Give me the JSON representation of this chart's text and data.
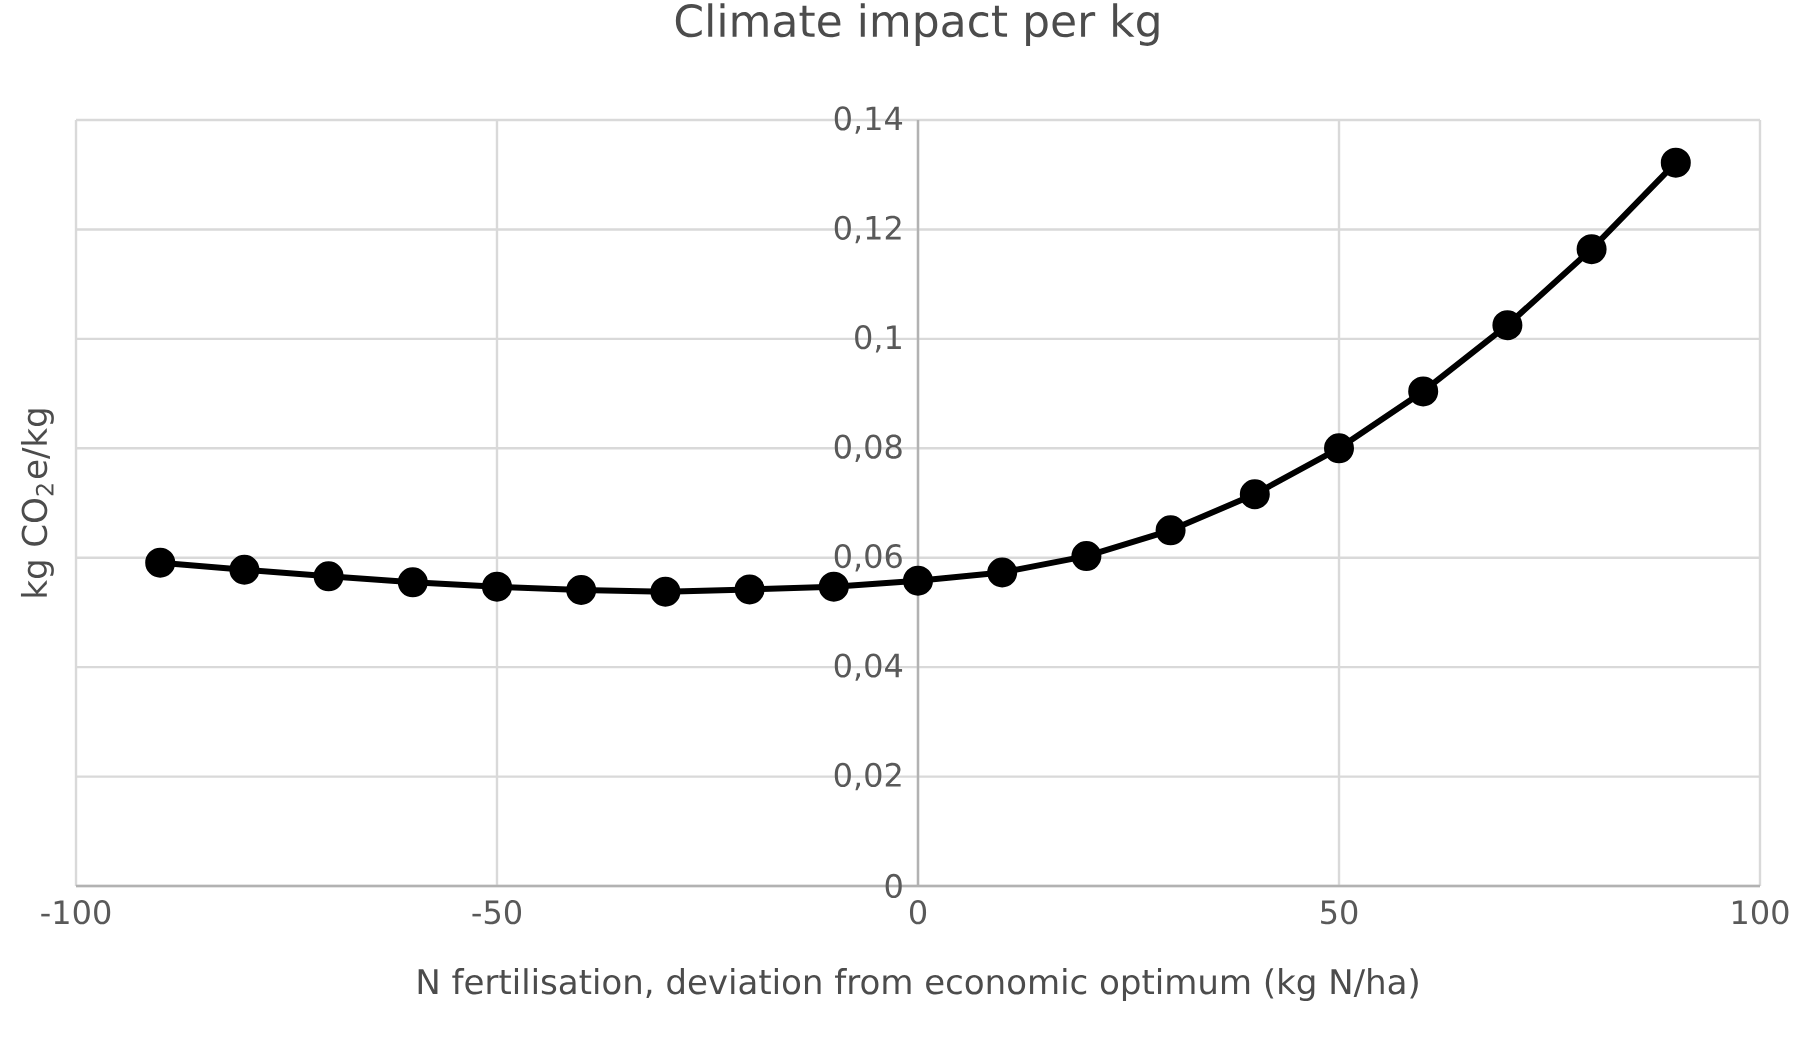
{
  "chart_data": {
    "type": "line",
    "title": "Climate impact per kg",
    "xlabel": "N fertilisation, deviation from economic optimum (kg N/ha)",
    "ylabel": "kg CO$_{2}$e/kg",
    "x": [
      -90,
      -80,
      -70,
      -60,
      -50,
      -40,
      -30,
      -20,
      -10,
      0,
      10,
      20,
      30,
      40,
      50,
      60,
      70,
      80,
      90
    ],
    "series": [
      {
        "color": "#000000",
        "values": [
          0.0591,
          0.0578,
          0.0566,
          0.0555,
          0.0547,
          0.0541,
          0.0538,
          0.0542,
          0.0547,
          0.0558,
          0.0573,
          0.0603,
          0.065,
          0.0716,
          0.08,
          0.0904,
          0.1025,
          0.1164,
          0.1322
        ]
      }
    ],
    "xlim": [
      -100,
      100
    ],
    "xticks": [
      -100,
      -50,
      0,
      50,
      100
    ],
    "ylim": [
      0,
      0.14
    ],
    "yticks": [
      {
        "value": 0,
        "label": "0"
      },
      {
        "value": 0.02,
        "label": "0,02"
      },
      {
        "value": 0.04,
        "label": "0,04"
      },
      {
        "value": 0.06,
        "label": "0,06"
      },
      {
        "value": 0.08,
        "label": "0,08"
      },
      {
        "value": 0.1,
        "label": "0,1"
      },
      {
        "value": 0.12,
        "label": "0,12"
      },
      {
        "value": 0.14,
        "label": "0,14"
      }
    ],
    "grid": true,
    "marker": "circle",
    "line_style": "solid",
    "legend": false
  }
}
